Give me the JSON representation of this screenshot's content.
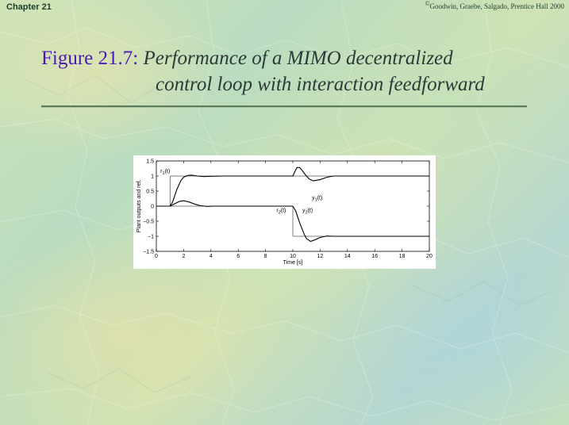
{
  "header": {
    "chapter": "Chapter 21",
    "copyright_symbol": "©",
    "copyright_text": "Goodwin, Graebe, Salgado, Prentice Hall 2000"
  },
  "slide": {
    "figure_label": "Figure 21.7:",
    "title_line1": "Performance of a MIMO decentralized",
    "title_line2": "control loop with interaction feedforward"
  },
  "colors": {
    "figure_label": "#4a1ab8",
    "title_text": "#2c3a38",
    "rule": "#5d7c5a"
  },
  "chart_data": {
    "type": "line",
    "xlabel": "Time [s]",
    "ylabel": "Plant outputs and ref.",
    "xlim": [
      0,
      20
    ],
    "ylim": [
      -1.5,
      1.5
    ],
    "xticks": [
      0,
      2,
      4,
      6,
      8,
      10,
      12,
      14,
      16,
      18,
      20
    ],
    "yticks": [
      1.5,
      1,
      0.5,
      0,
      -0.5,
      -1,
      -1.5
    ],
    "grid": false,
    "annotations": [
      {
        "name": "r1",
        "base": "r",
        "sub": "1",
        "suffix": "(t)",
        "x": 0.3,
        "y": 1.1
      },
      {
        "name": "y1",
        "base": "y",
        "sub": "1",
        "suffix": "(t)",
        "x": 11.4,
        "y": 0.23
      },
      {
        "name": "r2",
        "base": "r",
        "sub": "2",
        "suffix": "(t)",
        "x": 8.8,
        "y": -0.2
      },
      {
        "name": "y2",
        "base": "y",
        "sub": "2",
        "suffix": "(t)",
        "x": 10.7,
        "y": -0.2
      }
    ],
    "series": [
      {
        "name": "r1",
        "x": [
          0,
          1,
          1,
          20
        ],
        "y": [
          0,
          0,
          1,
          1
        ]
      },
      {
        "name": "y1",
        "x": [
          0,
          1,
          1.2,
          1.5,
          1.8,
          2.0,
          2.3,
          2.6,
          3.0,
          3.5,
          4.0,
          5.0,
          6.0,
          7.0,
          8.0,
          9.0,
          10.0,
          10.1,
          10.3,
          10.5,
          10.7,
          10.9,
          11.2,
          11.5,
          12.0,
          12.5,
          13.0,
          14.0,
          16.0,
          18.0,
          20.0
        ],
        "y": [
          0,
          0,
          0.15,
          0.55,
          0.85,
          0.96,
          1.02,
          1.03,
          1.0,
          0.98,
          0.99,
          1.0,
          1.0,
          1.0,
          1.0,
          1.0,
          1.0,
          1.1,
          1.28,
          1.28,
          1.18,
          1.05,
          0.9,
          0.84,
          0.88,
          0.96,
          1.0,
          1.0,
          1.0,
          1.0,
          1.0
        ]
      },
      {
        "name": "r2",
        "x": [
          0,
          10,
          10,
          20
        ],
        "y": [
          0,
          0,
          -1,
          -1
        ]
      },
      {
        "name": "y2",
        "x": [
          0,
          1,
          1.3,
          1.7,
          2.0,
          2.4,
          2.8,
          3.2,
          3.7,
          4.2,
          5.0,
          6.0,
          8.0,
          10.0,
          10.2,
          10.5,
          10.8,
          11.0,
          11.3,
          11.6,
          12.0,
          12.5,
          13.0,
          14.0,
          16.0,
          18.0,
          20.0
        ],
        "y": [
          0,
          0,
          0.07,
          0.16,
          0.18,
          0.14,
          0.07,
          0.02,
          -0.01,
          0,
          0,
          0,
          0,
          0,
          -0.15,
          -0.55,
          -0.9,
          -1.08,
          -1.17,
          -1.12,
          -1.04,
          -0.99,
          -1.0,
          -1.0,
          -1.0,
          -1.0,
          -1.0
        ]
      }
    ]
  }
}
